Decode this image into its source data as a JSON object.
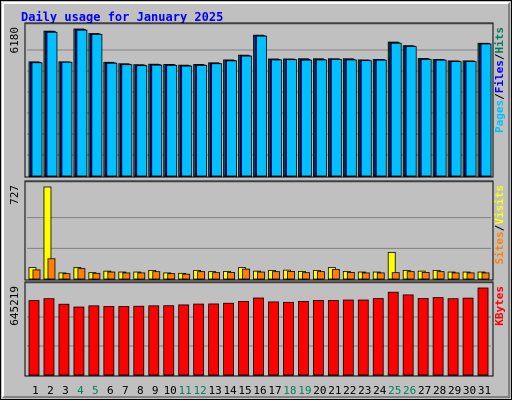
{
  "chart_data": {
    "type": "bar",
    "title": "Daily usage for January 2025",
    "categories": [
      "1",
      "2",
      "3",
      "4",
      "5",
      "6",
      "7",
      "8",
      "9",
      "10",
      "11",
      "12",
      "13",
      "14",
      "15",
      "16",
      "17",
      "18",
      "19",
      "20",
      "21",
      "22",
      "23",
      "24",
      "25",
      "26",
      "27",
      "28",
      "29",
      "30",
      "31"
    ],
    "weekend_days": [
      4,
      5,
      11,
      12,
      18,
      19,
      25,
      26
    ],
    "colors": {
      "title": "#0000ff",
      "hits": "#00805c",
      "files": "#0000ff",
      "pages": "#00c0ff",
      "visits": "#ffff00",
      "sites": "#ff8000",
      "kbytes": "#ff0000",
      "weekday_label": "#000000",
      "weekend_label": "#00805c",
      "panel_bg": "#c0c0c0",
      "grid": "#808080"
    },
    "panels": [
      {
        "id": "hits-files-pages",
        "max_label": "6180",
        "ylim": [
          0,
          6180
        ],
        "legend": [
          {
            "text": "Hits",
            "color": "#00805c"
          },
          {
            "text": "/",
            "color": "#000000"
          },
          {
            "text": "Files",
            "color": "#0000ff"
          },
          {
            "text": "/",
            "color": "#000000"
          },
          {
            "text": "Pages",
            "color": "#00c0ff"
          }
        ],
        "series": [
          {
            "name": "Hits",
            "color": "#00805c",
            "values": [
              4800,
              6090,
              4800,
              6180,
              5990,
              4780,
              4720,
              4680,
              4700,
              4690,
              4660,
              4690,
              4760,
              4880,
              5080,
              5920,
              4920,
              4920,
              4930,
              4930,
              4930,
              4930,
              4880,
              4900,
              5630,
              5480,
              4940,
              4900,
              4840,
              4840,
              5580
            ]
          },
          {
            "name": "Files",
            "color": "#0000ff",
            "values": [
              4780,
              6070,
              4790,
              6160,
              5970,
              4760,
              4700,
              4660,
              4690,
              4680,
              4640,
              4670,
              4740,
              4860,
              5060,
              5900,
              4900,
              4910,
              4900,
              4900,
              4920,
              4900,
              4870,
              4890,
              5600,
              5460,
              4920,
              4890,
              4830,
              4830,
              5570
            ]
          },
          {
            "name": "Pages",
            "color": "#00c0ff",
            "values": [
              4760,
              6040,
              4780,
              6130,
              5950,
              4740,
              4680,
              4640,
              4660,
              4650,
              4620,
              4650,
              4720,
              4840,
              5040,
              5880,
              4880,
              4890,
              4870,
              4880,
              4900,
              4880,
              4850,
              4870,
              5580,
              5440,
              4900,
              4870,
              4810,
              4810,
              5550
            ]
          }
        ]
      },
      {
        "id": "visits-sites",
        "max_label": "727",
        "ylim": [
          0,
          727
        ],
        "legend": [
          {
            "text": "Visits",
            "color": "#ffff00"
          },
          {
            "text": "/",
            "color": "#000000"
          },
          {
            "text": "Sites",
            "color": "#ff8000"
          }
        ],
        "series": [
          {
            "name": "Visits",
            "color": "#ffff00",
            "values": [
              90,
              727,
              48,
              90,
              50,
              62,
              55,
              55,
              68,
              48,
              45,
              68,
              58,
              60,
              90,
              62,
              68,
              70,
              60,
              68,
              90,
              60,
              55,
              55,
              210,
              68,
              62,
              68,
              55,
              55,
              55
            ]
          },
          {
            "name": "Sites",
            "color": "#ff8000",
            "values": [
              72,
              160,
              42,
              82,
              45,
              55,
              48,
              48,
              58,
              42,
              38,
              58,
              50,
              52,
              78,
              55,
              58,
              60,
              50,
              58,
              75,
              52,
              48,
              48,
              50,
              58,
              52,
              58,
              48,
              48,
              48
            ]
          }
        ]
      },
      {
        "id": "kbytes",
        "max_label": "645219",
        "ylim": [
          0,
          645219
        ],
        "legend": [
          {
            "text": "KBytes",
            "color": "#ff0000"
          }
        ],
        "series": [
          {
            "name": "KBytes",
            "color": "#ff0000",
            "values": [
              552000,
              566000,
              525000,
              504000,
              513000,
              508000,
              508000,
              510000,
              513000,
              514000,
              520000,
              526000,
              527000,
              532000,
              546000,
              571000,
              542000,
              539000,
              546000,
              553000,
              553000,
              556000,
              556000,
              567000,
              614000,
              594000,
              567000,
              574000,
              566000,
              570000,
              645219
            ]
          }
        ]
      }
    ]
  }
}
